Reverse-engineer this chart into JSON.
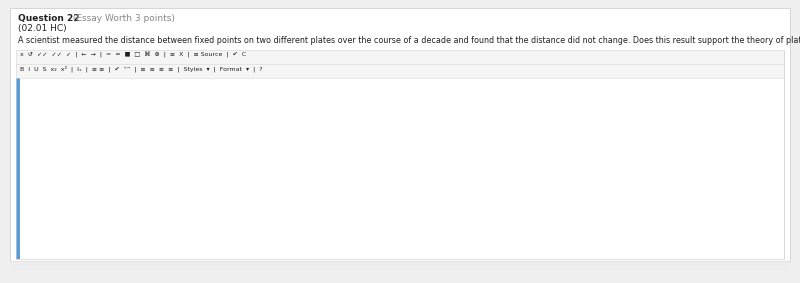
{
  "bg_color": "#f0f0f0",
  "page_bg": "#ffffff",
  "page_border": "#d0d0d0",
  "toolbar_bg": "#f5f5f5",
  "toolbar_border": "#d8d8d8",
  "blue_accent": "#5b9bd5",
  "text_color": "#222222",
  "light_text": "#888888",
  "footer_bg": "#eeeeee",
  "question_bold": "Question 22",
  "question_light": " (Essay Worth 3 points)",
  "subheading": "(02.01 HC)",
  "body_text": "A scientist measured the distance between fixed points on two different plates over the course of a decade and found that the distance did not change. Does this result support the theory of plate tectonics? Why or why not?",
  "toolbar1_items": "x  ↺  ✓✓  ✓✓  ✓  |  ←  →  |  =  ≈  ■  □  ⌘  ⊕  |  ≡  X  |  ≡ Source  |  ✔  C",
  "toolbar2_items": "B  I  U  S  x₂  x²  |  Iₓ  |  ≡ ≡  |  ✔  “”  |  ≡  ≡  ≡  ≡  |  Styles  ▾  |  Format  ▾  |  ?",
  "fig_w": 8.0,
  "fig_h": 2.83,
  "dpi": 100
}
